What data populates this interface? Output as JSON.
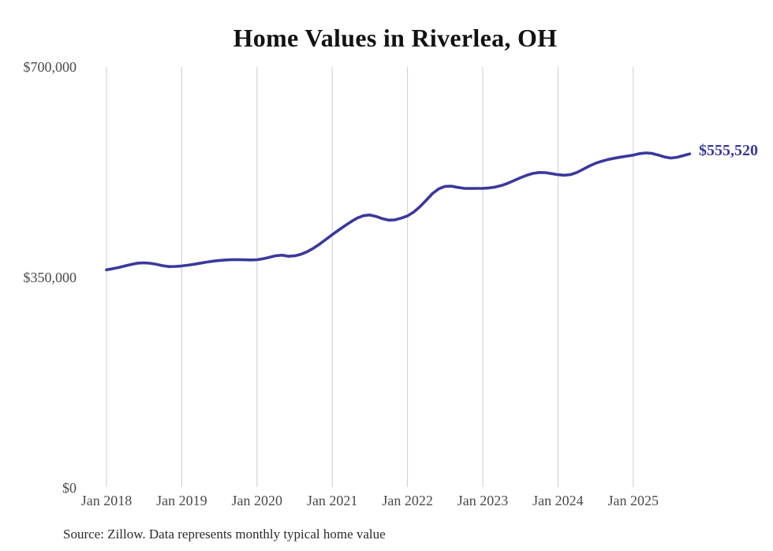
{
  "chart": {
    "title": "Home Values in Riverlea, OH",
    "end_label": "$555,520",
    "source_note": "Source: Zillow. Data represents monthly typical home value",
    "line_color": "#3a389c",
    "grid_color": "#cccccc",
    "axis_text_color": "#4a4a4a",
    "title_color": "#121212"
  },
  "chart_data": {
    "type": "line",
    "title": "Home Values in Riverlea, OH",
    "series_name": "Monthly typical home value",
    "x_frequency": "monthly",
    "x_start": "2018-01",
    "x_end": "2025-10",
    "x_tick_labels": [
      "Jan 2018",
      "Jan 2019",
      "Jan 2020",
      "Jan 2021",
      "Jan 2022",
      "Jan 2023",
      "Jan 2024",
      "Jan 2025"
    ],
    "y_ticks": [
      0,
      350000,
      700000
    ],
    "y_tick_labels": [
      "$0",
      "$350,000",
      "$700,000"
    ],
    "ylim": [
      0,
      700000
    ],
    "grid": "vertical-only",
    "legend": "none",
    "final_value": 555520,
    "values": [
      362700,
      364500,
      366800,
      369300,
      371800,
      373800,
      374400,
      373600,
      371800,
      369500,
      368100,
      368300,
      369200,
      370400,
      372000,
      373800,
      375600,
      377100,
      378300,
      379100,
      379600,
      379600,
      379300,
      379100,
      379500,
      381200,
      383600,
      386200,
      387100,
      385300,
      385900,
      388600,
      392800,
      398600,
      405600,
      413300,
      421200,
      428600,
      435900,
      442800,
      448900,
      452800,
      453900,
      451500,
      447800,
      445300,
      445800,
      448700,
      452400,
      458800,
      467900,
      478600,
      489700,
      497600,
      501500,
      501800,
      499800,
      498300,
      498000,
      498100,
      498300,
      498900,
      500400,
      503000,
      506700,
      511300,
      515800,
      519900,
      523000,
      524600,
      524300,
      522600,
      520900,
      520000,
      521100,
      524600,
      529800,
      535300,
      539900,
      543400,
      546200,
      548300,
      550200,
      551900,
      553400,
      555900,
      557100,
      556300,
      553600,
      550400,
      548600,
      549900,
      552600,
      555520
    ]
  }
}
